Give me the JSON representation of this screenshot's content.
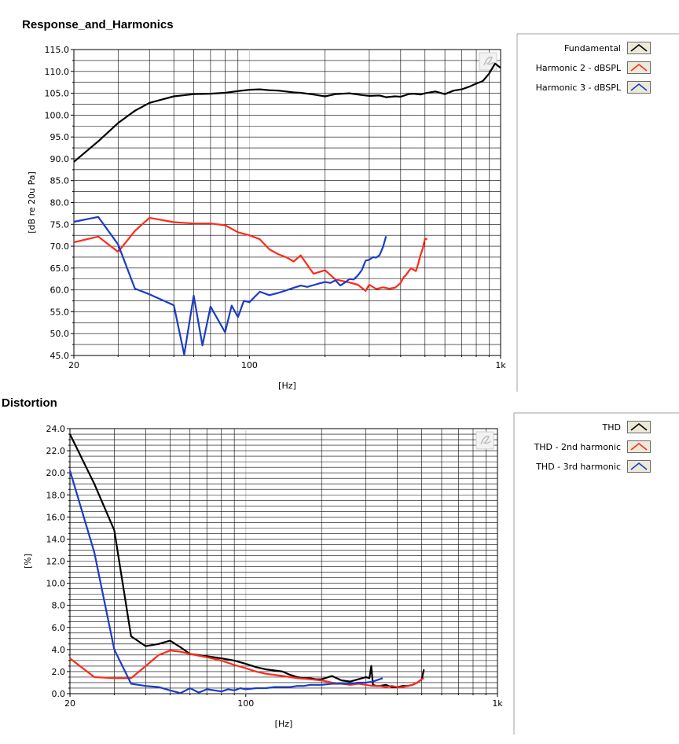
{
  "titles": {
    "top": "Response_and_Harmonics",
    "bottom": "Distortion"
  },
  "chart_data": [
    {
      "type": "line",
      "title": "Response_and_Harmonics",
      "xlabel": "[Hz]",
      "ylabel": "[dB re 20u Pa]",
      "xscale": "log",
      "xlim": [
        20,
        1000
      ],
      "ylim": [
        45,
        115
      ],
      "xticks": [
        20,
        100,
        1000
      ],
      "xtick_labels": [
        "20",
        "100",
        "1k"
      ],
      "yticks": [
        45,
        50,
        55,
        60,
        65,
        70,
        75,
        80,
        85,
        90,
        95,
        100,
        105,
        110,
        115
      ],
      "ytick_labels": [
        "45.0",
        "50.0",
        "55.0",
        "60.0",
        "65.0",
        "70.0",
        "75.0",
        "80.0",
        "85.0",
        "90.0",
        "95.0",
        "100.0",
        "105.0",
        "110.0",
        "115.0"
      ],
      "grid": true,
      "legend_position": "right",
      "series": [
        {
          "name": "Fundamental",
          "color": "#000000",
          "x": [
            20,
            25,
            30,
            35,
            40,
            50,
            60,
            70,
            80,
            90,
            100,
            110,
            120,
            130,
            140,
            150,
            160,
            180,
            200,
            220,
            250,
            280,
            300,
            330,
            350,
            380,
            400,
            430,
            450,
            480,
            500,
            550,
            600,
            650,
            700,
            750,
            800,
            850,
            900,
            950,
            1000
          ],
          "y": [
            89.3,
            94,
            98.2,
            101,
            102.8,
            104.3,
            104.8,
            104.9,
            105.1,
            105.5,
            105.8,
            105.9,
            105.7,
            105.6,
            105.4,
            105.2,
            105.1,
            104.7,
            104.3,
            104.8,
            105,
            104.6,
            104.4,
            104.5,
            104.1,
            104.3,
            104.2,
            104.8,
            104.9,
            104.7,
            105,
            105.4,
            104.8,
            105.6,
            105.9,
            106.5,
            107.2,
            107.8,
            109.5,
            111.8,
            110.8
          ]
        },
        {
          "name": "Harmonic 2 - dBSPL",
          "color": "#ff2a1a",
          "x": [
            20,
            25,
            30,
            35,
            40,
            50,
            60,
            70,
            80,
            90,
            100,
            110,
            120,
            130,
            140,
            150,
            160,
            180,
            200,
            220,
            250,
            270,
            290,
            300,
            320,
            340,
            360,
            380,
            400,
            410,
            420,
            440,
            460,
            470,
            480,
            490,
            500,
            510
          ],
          "y": [
            70.9,
            72.2,
            68.7,
            73.5,
            76.5,
            75.5,
            75.2,
            75.2,
            74.8,
            73.2,
            72.5,
            71.6,
            69.3,
            68.2,
            67.5,
            66.5,
            67.9,
            63.7,
            64.5,
            62.4,
            61.7,
            61.2,
            59.8,
            61.2,
            60.2,
            60.6,
            60.3,
            60.5,
            61.6,
            62.8,
            63.4,
            65,
            64.3,
            66,
            68,
            69.5,
            71.8,
            71.5
          ]
        },
        {
          "name": "Harmonic 3 - dBSPL",
          "color": "#1a3cc8",
          "x": [
            20,
            25,
            30,
            35,
            40,
            50,
            55,
            60,
            65,
            70,
            80,
            85,
            90,
            95,
            100,
            110,
            120,
            130,
            140,
            150,
            160,
            170,
            180,
            190,
            200,
            210,
            220,
            230,
            240,
            250,
            260,
            270,
            280,
            290,
            300,
            310,
            320,
            330,
            340,
            350
          ],
          "y": [
            75.6,
            76.7,
            70.4,
            60.3,
            59,
            56.5,
            45.2,
            58.7,
            47.3,
            56.2,
            50.3,
            56.4,
            53.8,
            57.5,
            57.2,
            59.6,
            58.8,
            59.3,
            59.9,
            60.5,
            61,
            60.7,
            61.1,
            61.5,
            61.8,
            61.6,
            62.2,
            61,
            61.7,
            62.5,
            62.4,
            63.3,
            64.5,
            66.7,
            66.9,
            67.5,
            67.4,
            68,
            69.8,
            72.3
          ]
        }
      ]
    },
    {
      "type": "line",
      "title": "Distortion",
      "xlabel": "[Hz]",
      "ylabel": "[%]",
      "xscale": "log",
      "xlim": [
        20,
        1000
      ],
      "ylim": [
        0,
        24
      ],
      "xticks": [
        20,
        100,
        1000
      ],
      "xtick_labels": [
        "20",
        "100",
        "1k"
      ],
      "yticks": [
        0,
        2,
        4,
        6,
        8,
        10,
        12,
        14,
        16,
        18,
        20,
        22,
        24
      ],
      "ytick_labels": [
        "0.0",
        "2.0",
        "4.0",
        "6.0",
        "8.0",
        "10.0",
        "12.0",
        "14.0",
        "16.0",
        "18.0",
        "20.0",
        "22.0",
        "24.0"
      ],
      "grid": true,
      "legend_position": "right",
      "series": [
        {
          "name": "THD",
          "color": "#000000",
          "x": [
            20,
            25,
            30,
            35,
            40,
            45,
            50,
            55,
            60,
            70,
            80,
            90,
            100,
            110,
            120,
            130,
            140,
            150,
            160,
            170,
            180,
            190,
            200,
            220,
            240,
            260,
            280,
            300,
            310,
            315,
            320,
            330,
            340,
            360,
            380,
            400,
            420,
            440,
            460,
            480,
            500,
            510
          ],
          "y": [
            23.5,
            19,
            14.8,
            5.2,
            4.3,
            4.5,
            4.8,
            4.2,
            3.6,
            3.4,
            3.2,
            3,
            2.7,
            2.4,
            2.2,
            2.1,
            2,
            1.7,
            1.5,
            1.4,
            1.4,
            1.3,
            1.3,
            1.6,
            1.2,
            1.1,
            1.3,
            1.5,
            1.4,
            2.5,
            0.8,
            0.7,
            0.7,
            0.8,
            0.6,
            0.6,
            0.7,
            0.7,
            0.8,
            1,
            1.3,
            2.2
          ]
        },
        {
          "name": "THD - 2nd harmonic",
          "color": "#ff2a1a",
          "x": [
            20,
            25,
            30,
            35,
            40,
            45,
            50,
            55,
            60,
            70,
            80,
            90,
            100,
            110,
            120,
            130,
            140,
            150,
            160,
            180,
            200,
            220,
            240,
            260,
            280,
            300,
            320,
            340,
            360,
            380,
            400,
            420,
            440,
            460,
            480,
            500,
            510
          ],
          "y": [
            3.2,
            1.5,
            1.4,
            1.4,
            2.5,
            3.5,
            3.9,
            3.8,
            3.6,
            3.3,
            3,
            2.6,
            2.3,
            2,
            1.8,
            1.7,
            1.6,
            1.5,
            1.4,
            1.3,
            1.2,
            1,
            0.9,
            0.8,
            0.9,
            0.8,
            0.7,
            0.7,
            0.6,
            0.7,
            0.6,
            0.6,
            0.7,
            0.8,
            1,
            1.3,
            1.4
          ]
        },
        {
          "name": "THD - 3rd harmonic",
          "color": "#1a3cc8",
          "x": [
            20,
            25,
            30,
            35,
            40,
            45,
            50,
            55,
            60,
            65,
            70,
            80,
            85,
            90,
            95,
            100,
            110,
            120,
            130,
            140,
            150,
            160,
            170,
            180,
            190,
            200,
            220,
            240,
            260,
            280,
            300,
            320,
            340,
            350
          ],
          "y": [
            20.2,
            12.8,
            4,
            0.9,
            0.7,
            0.6,
            0.3,
            0.05,
            0.5,
            0.1,
            0.4,
            0.2,
            0.4,
            0.3,
            0.5,
            0.4,
            0.5,
            0.5,
            0.6,
            0.6,
            0.6,
            0.7,
            0.7,
            0.8,
            0.8,
            0.8,
            0.9,
            0.9,
            0.9,
            1,
            1,
            1.1,
            1.3,
            1.4
          ]
        }
      ]
    }
  ]
}
